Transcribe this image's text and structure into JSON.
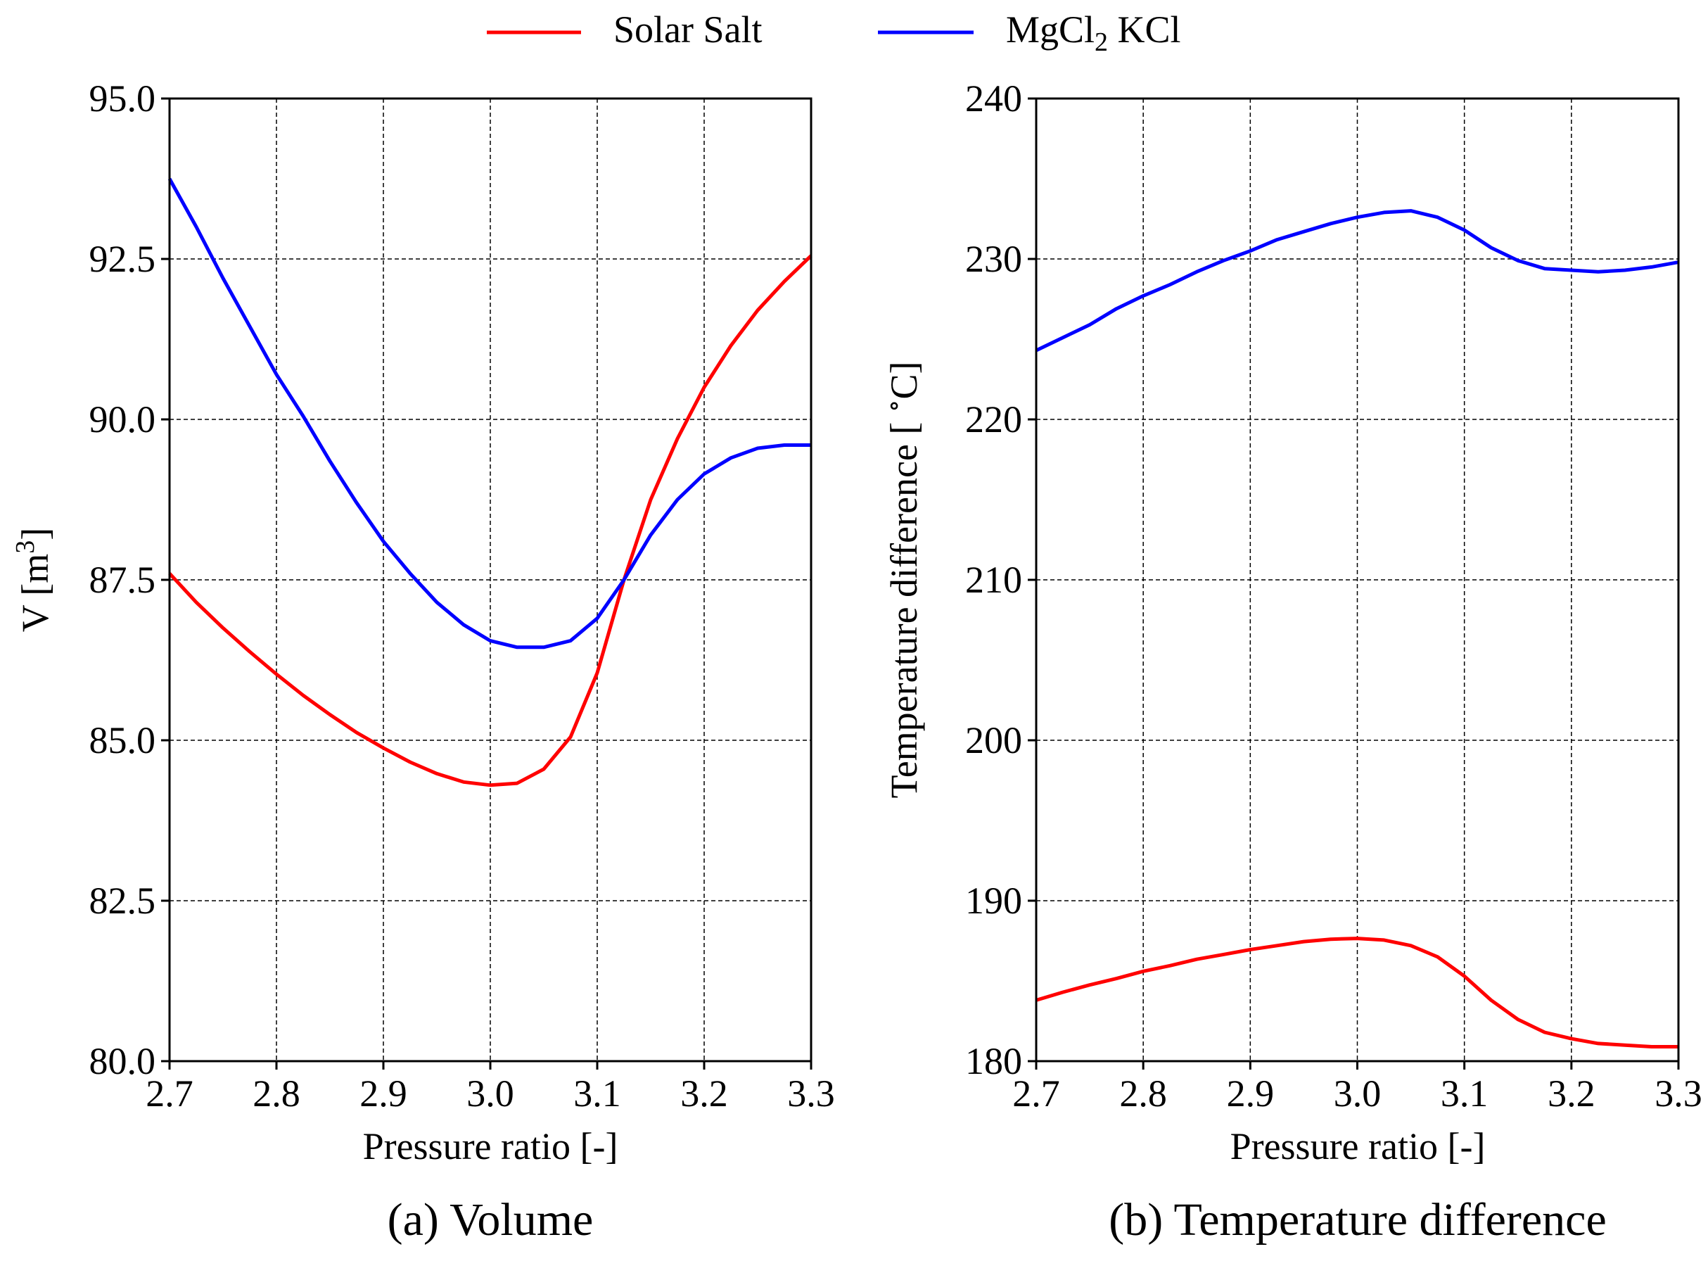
{
  "legend": {
    "placement": "top-center",
    "entries": [
      {
        "series_key": "solar",
        "main": "Solar Salt",
        "color": "#ff0000"
      },
      {
        "series_key": "mgcl",
        "main": "MgCl",
        "sub": "2",
        "after": " KCl",
        "color": "#0000ff"
      }
    ]
  },
  "chart_data": [
    {
      "type": "line",
      "caption": "(a) Volume",
      "xlabel": "Pressure ratio [-]",
      "ylabel": {
        "main": "V [m",
        "sup": "3",
        "after": "]"
      },
      "xlim": [
        2.7,
        3.3
      ],
      "ylim": [
        80.0,
        95.0
      ],
      "xticks": [
        "2.7",
        "2.8",
        "2.9",
        "3.0",
        "3.1",
        "3.2",
        "3.3"
      ],
      "yticks": [
        "80.0",
        "82.5",
        "85.0",
        "87.5",
        "90.0",
        "92.5",
        "95.0"
      ],
      "grid": true,
      "x": [
        2.7,
        2.725,
        2.75,
        2.775,
        2.8,
        2.825,
        2.85,
        2.875,
        2.9,
        2.925,
        2.95,
        2.975,
        3.0,
        3.025,
        3.05,
        3.075,
        3.1,
        3.125,
        3.15,
        3.175,
        3.2,
        3.225,
        3.25,
        3.275,
        3.3
      ],
      "series": [
        {
          "key": "solar",
          "color": "#ff0000",
          "values": [
            87.6,
            87.15,
            86.75,
            86.38,
            86.03,
            85.7,
            85.4,
            85.12,
            84.88,
            84.66,
            84.48,
            84.35,
            84.3,
            84.33,
            84.55,
            85.05,
            86.05,
            87.5,
            88.75,
            89.7,
            90.5,
            91.15,
            91.7,
            92.15,
            92.55
          ]
        },
        {
          "key": "mgcl",
          "color": "#0000ff",
          "values": [
            93.75,
            93.0,
            92.2,
            91.45,
            90.7,
            90.05,
            89.35,
            88.7,
            88.1,
            87.6,
            87.15,
            86.8,
            86.55,
            86.45,
            86.45,
            86.55,
            86.9,
            87.5,
            88.2,
            88.75,
            89.15,
            89.4,
            89.55,
            89.6,
            89.6
          ]
        }
      ]
    },
    {
      "type": "line",
      "caption": "(b) Temperature difference",
      "xlabel": "Pressure ratio [-]",
      "ylabel": {
        "main": "Temperature difference [ ",
        "sup": "∘",
        "after": "C]"
      },
      "xlim": [
        2.7,
        3.3
      ],
      "ylim": [
        180,
        240
      ],
      "xticks": [
        "2.7",
        "2.8",
        "2.9",
        "3.0",
        "3.1",
        "3.2",
        "3.3"
      ],
      "yticks": [
        "180",
        "190",
        "200",
        "210",
        "220",
        "230",
        "240"
      ],
      "grid": true,
      "x": [
        2.7,
        2.725,
        2.75,
        2.775,
        2.8,
        2.825,
        2.85,
        2.875,
        2.9,
        2.925,
        2.95,
        2.975,
        3.0,
        3.025,
        3.05,
        3.075,
        3.1,
        3.125,
        3.15,
        3.175,
        3.2,
        3.225,
        3.25,
        3.275,
        3.3
      ],
      "series": [
        {
          "key": "solar",
          "color": "#ff0000",
          "values": [
            183.8,
            184.3,
            184.75,
            185.15,
            185.6,
            185.95,
            186.35,
            186.65,
            186.95,
            187.2,
            187.45,
            187.6,
            187.65,
            187.55,
            187.2,
            186.5,
            185.3,
            183.8,
            182.6,
            181.8,
            181.4,
            181.1,
            181.0,
            180.9,
            180.9
          ]
        },
        {
          "key": "mgcl",
          "color": "#0000ff",
          "values": [
            224.3,
            225.1,
            225.9,
            226.9,
            227.7,
            228.4,
            229.2,
            229.9,
            230.5,
            231.2,
            231.7,
            232.2,
            232.6,
            232.9,
            233.0,
            232.6,
            231.8,
            230.7,
            229.9,
            229.4,
            229.3,
            229.2,
            229.3,
            229.5,
            229.8
          ]
        }
      ]
    }
  ]
}
